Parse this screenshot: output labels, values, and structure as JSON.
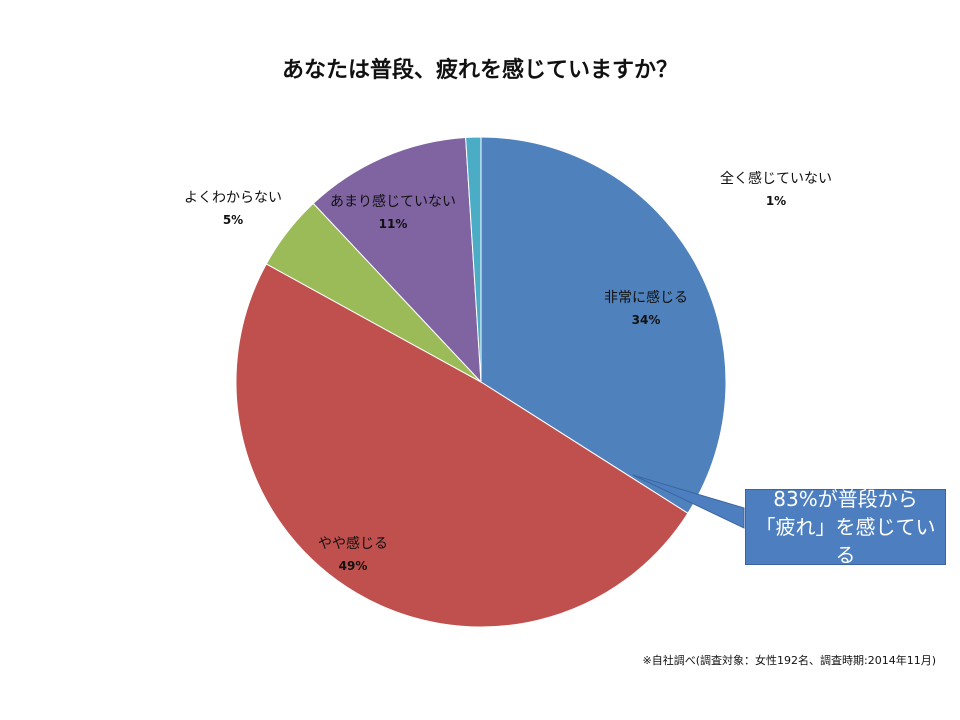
{
  "chart_data": {
    "type": "pie",
    "title": "あなたは普段、疲れを感じていますか？",
    "slices": [
      {
        "label": "非常に感じる",
        "value": 34,
        "value_label": "34%",
        "color": "#4f81bd"
      },
      {
        "label": "やや感じる",
        "value": 49,
        "value_label": "49%",
        "color": "#c0504d"
      },
      {
        "label": "よくわからない",
        "value": 5,
        "value_label": "5%",
        "color": "#9bbb59"
      },
      {
        "label": "あまり感じていない",
        "value": 11,
        "value_label": "11%",
        "color": "#8064a2"
      },
      {
        "label": "全く感じていない",
        "value": 1,
        "value_label": "1%",
        "color": "#4bacc6"
      }
    ],
    "start_angle": "12 o'clock",
    "direction": "clockwise"
  },
  "callout": {
    "line1": "83%が普段から",
    "line2": "「疲れ」を感じている",
    "fill_color": "#4d7fc0"
  },
  "source_note": "※自社調べ(調査対象：女性192名、調査時期:2014年11月)"
}
